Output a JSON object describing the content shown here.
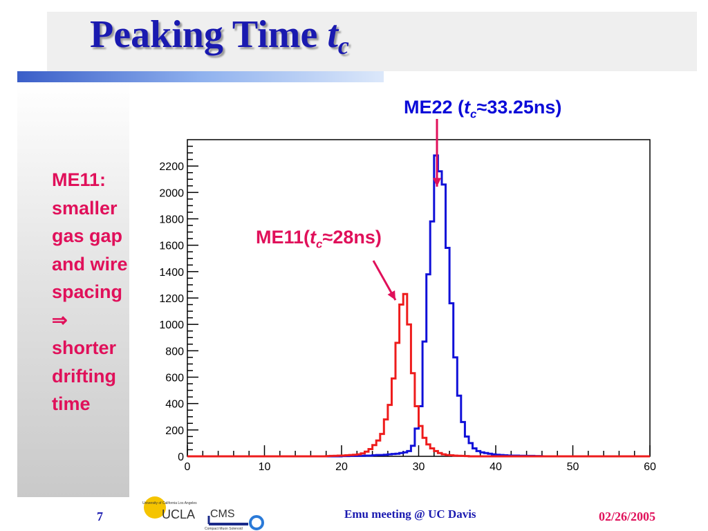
{
  "slide": {
    "title_main": "Peaking Time ",
    "title_t": "t",
    "title_sub": "c",
    "side_lines": [
      "ME11:",
      "smaller",
      "gas gap",
      "and wire",
      "spacing",
      "⇒",
      "shorter",
      "drifting",
      "time"
    ],
    "me22_label": {
      "pre": "ME22 (",
      "t": "t",
      "sub": "c",
      "post": "≈33.25ns)"
    },
    "me11_label": {
      "pre": "ME11(",
      "t": "t",
      "sub": "c",
      "post": "≈28ns)"
    },
    "footer_page": "7",
    "footer_meeting": "Emu meeting @ UC Davis",
    "footer_date": "02/26/2005",
    "logo": {
      "top_text": "University of California Los Angeles",
      "ucla": "UCLA",
      "cms": "CMS",
      "cms_sub": "Compact Muon Solenoid"
    }
  },
  "chart_data": {
    "type": "histogram",
    "xlim": [
      0,
      60
    ],
    "ylim": [
      0,
      2400
    ],
    "x_ticks": [
      0,
      10,
      20,
      30,
      40,
      50,
      60
    ],
    "y_ticks": [
      0,
      200,
      400,
      600,
      800,
      1000,
      1200,
      1400,
      1600,
      1800,
      2000,
      2200
    ],
    "bin_width": 0.5,
    "series": [
      {
        "name": "ME22",
        "color": "#1010d8",
        "bins": [
          [
            20,
            2
          ],
          [
            20.5,
            2
          ],
          [
            21,
            3
          ],
          [
            21.5,
            3
          ],
          [
            22,
            4
          ],
          [
            22.5,
            4
          ],
          [
            23,
            5
          ],
          [
            23.5,
            5
          ],
          [
            24,
            8
          ],
          [
            24.5,
            10
          ],
          [
            25,
            10
          ],
          [
            25.5,
            12
          ],
          [
            26,
            15
          ],
          [
            26.5,
            18
          ],
          [
            27,
            20
          ],
          [
            27.5,
            25
          ],
          [
            28,
            30
          ],
          [
            28.5,
            40
          ],
          [
            29,
            80
          ],
          [
            29.5,
            210
          ],
          [
            30,
            380
          ],
          [
            30.5,
            870
          ],
          [
            31,
            1380
          ],
          [
            31.5,
            1780
          ],
          [
            32,
            2280
          ],
          [
            32.5,
            2160
          ],
          [
            33,
            2060
          ],
          [
            33.5,
            1580
          ],
          [
            34,
            1160
          ],
          [
            34.5,
            750
          ],
          [
            35,
            460
          ],
          [
            35.5,
            260
          ],
          [
            36,
            150
          ],
          [
            36.5,
            100
          ],
          [
            37,
            60
          ],
          [
            37.5,
            40
          ],
          [
            38,
            30
          ],
          [
            38.5,
            25
          ],
          [
            39,
            20
          ],
          [
            39.5,
            15
          ],
          [
            40,
            12
          ],
          [
            40.5,
            10
          ],
          [
            41,
            8
          ],
          [
            41.5,
            6
          ],
          [
            42,
            5
          ],
          [
            42.5,
            5
          ],
          [
            43,
            4
          ],
          [
            43.5,
            4
          ],
          [
            44,
            3
          ],
          [
            44.5,
            3
          ],
          [
            45,
            2
          ],
          [
            45.5,
            2
          ]
        ]
      },
      {
        "name": "ME11",
        "color": "#ee1c1c",
        "bins": [
          [
            18,
            2
          ],
          [
            18.5,
            3
          ],
          [
            19,
            4
          ],
          [
            19.5,
            5
          ],
          [
            20,
            6
          ],
          [
            20.5,
            8
          ],
          [
            21,
            10
          ],
          [
            21.5,
            12
          ],
          [
            22,
            15
          ],
          [
            22.5,
            22
          ],
          [
            23,
            35
          ],
          [
            23.5,
            55
          ],
          [
            24,
            85
          ],
          [
            24.5,
            120
          ],
          [
            25,
            170
          ],
          [
            25.5,
            280
          ],
          [
            26,
            390
          ],
          [
            26.5,
            590
          ],
          [
            27,
            860
          ],
          [
            27.5,
            1150
          ],
          [
            28,
            1230
          ],
          [
            28.5,
            1000
          ],
          [
            29,
            630
          ],
          [
            29.5,
            380
          ],
          [
            30,
            230
          ],
          [
            30.5,
            140
          ],
          [
            31,
            90
          ],
          [
            31.5,
            60
          ],
          [
            32,
            40
          ],
          [
            32.5,
            25
          ],
          [
            33,
            15
          ],
          [
            33.5,
            10
          ],
          [
            34,
            8
          ],
          [
            34.5,
            5
          ],
          [
            35,
            4
          ],
          [
            35.5,
            3
          ],
          [
            36,
            2
          ]
        ]
      }
    ]
  }
}
